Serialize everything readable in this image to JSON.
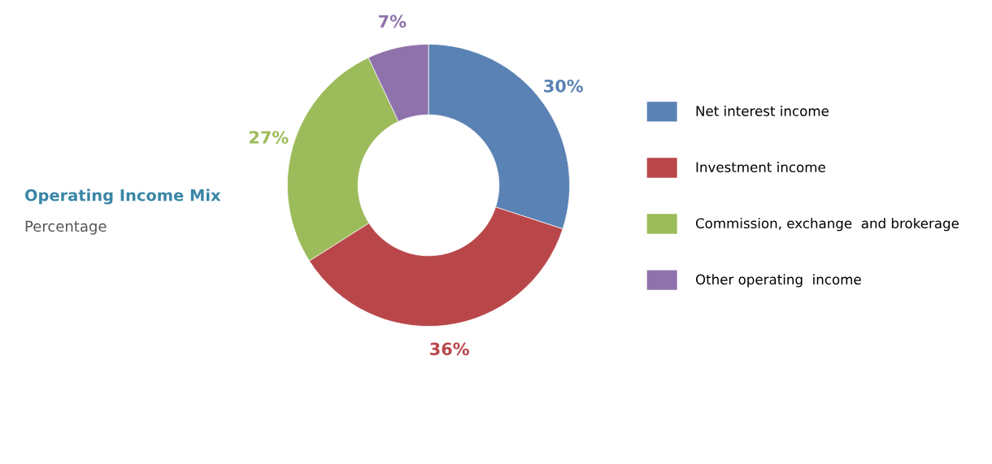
{
  "chart_data": {
    "type": "donut",
    "title": "Operating Income Mix",
    "subtitle": "Percentage",
    "categories": [
      "Net interest income",
      "Investment income",
      "Commission, exchange  and brokerage",
      "Other operating  income"
    ],
    "values": [
      30,
      36,
      27,
      7
    ],
    "colors": [
      "#5a82b4",
      "#b9474a",
      "#9cbb5a",
      "#8f72ab"
    ],
    "value_labels": [
      "30%",
      "36%",
      "27%",
      "7%"
    ],
    "legend": "right"
  }
}
